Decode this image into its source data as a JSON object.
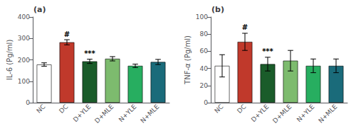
{
  "chart_data": [
    {
      "type": "bar",
      "title": "(a)",
      "ylabel": "IL-6 (Pg/ml)",
      "categories": [
        "NC",
        "DC",
        "D+YLE",
        "D+MLE",
        "N+YLE",
        "N+MLE"
      ],
      "values": [
        178,
        282,
        193,
        205,
        172,
        190
      ],
      "errors": [
        8,
        12,
        10,
        10,
        8,
        12
      ],
      "colors": [
        "#ffffff",
        "#c0392b",
        "#1a5c2a",
        "#7dbb6e",
        "#27ae60",
        "#1a6b7a"
      ],
      "ylim": [
        0,
        400
      ],
      "yticks": [
        0,
        100,
        200,
        300,
        400
      ],
      "grid": false,
      "annotations": [
        {
          "text": "#",
          "category": "DC"
        },
        {
          "text": "***",
          "category": "D+YLE"
        }
      ]
    },
    {
      "type": "bar",
      "title": "(b)",
      "ylabel": "TNF-α (Pg/ml)",
      "categories": [
        "NC",
        "DC",
        "D+YLE",
        "D+MLE",
        "N+YLE",
        "N+MLE"
      ],
      "values": [
        43,
        71,
        45,
        49,
        43,
        43
      ],
      "errors": [
        13,
        10,
        8,
        12,
        8,
        8
      ],
      "colors": [
        "#ffffff",
        "#c0392b",
        "#1a5c2a",
        "#7dbb6e",
        "#27ae60",
        "#1a6b7a"
      ],
      "ylim": [
        0,
        100
      ],
      "yticks": [
        0,
        20,
        40,
        60,
        80,
        100
      ],
      "grid": false,
      "annotations": [
        {
          "text": "#",
          "category": "DC"
        },
        {
          "text": "***",
          "category": "D+YLE"
        }
      ]
    }
  ]
}
